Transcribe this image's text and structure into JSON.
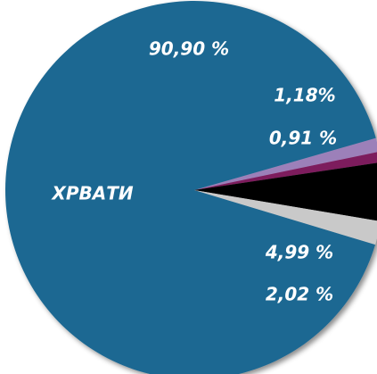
{
  "chart_data": {
    "type": "pie",
    "categories": [
      "ХРВАТИ",
      null,
      null,
      null,
      null
    ],
    "values": [
      90.9,
      1.18,
      0.91,
      4.99,
      2.02
    ],
    "value_labels": [
      "90,90 %",
      "1,18%",
      "0,91 %",
      "4,99 %",
      "2,02 %"
    ],
    "colors": [
      "#1d6892",
      "#9c80b9",
      "#7d1b5d",
      "#000000",
      "#c9c9c9"
    ]
  }
}
